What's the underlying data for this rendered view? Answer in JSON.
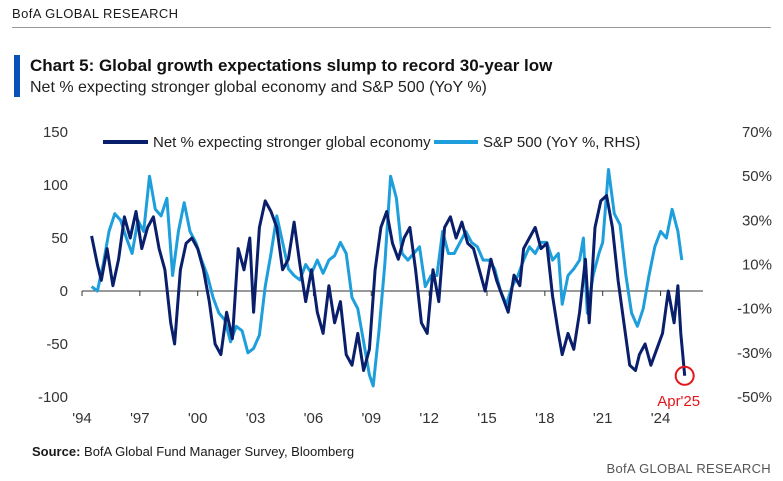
{
  "header": {
    "brand": "BofA GLOBAL RESEARCH"
  },
  "footer": {
    "source_label": "Source:",
    "source_text": "BofA Global Fund Manager Survey, Bloomberg",
    "brand": "BofA GLOBAL RESEARCH"
  },
  "colors": {
    "navy": "#0a1f6b",
    "light": "#1e9fdc",
    "accent": "#0a51b8",
    "annotation": "#e3161b"
  },
  "chart_data": {
    "type": "line",
    "title": "Chart 5: Global growth expectations slump to record 30-year low",
    "subtitle": "Net % expecting stronger global economy and S&P 500 (YoY %)",
    "x_ticks": [
      "'94",
      "'97",
      "'00",
      "'03",
      "'06",
      "'09",
      "'12",
      "'15",
      "'18",
      "'21",
      "'24"
    ],
    "x_tick_years": [
      1994,
      1997,
      2000,
      2003,
      2006,
      2009,
      2012,
      2015,
      2018,
      2021,
      2024
    ],
    "xlim": [
      1994,
      2026.2
    ],
    "left_axis": {
      "ylim": [
        -100,
        150
      ],
      "ticks": [
        150,
        100,
        50,
        0,
        -50,
        -100
      ],
      "labels": [
        "150",
        "100",
        "50",
        "0",
        "-50",
        "-100"
      ]
    },
    "right_axis": {
      "ylim": [
        -50,
        70
      ],
      "ticks": [
        70,
        50,
        30,
        10,
        -10,
        -30,
        -50
      ],
      "labels": [
        "70%",
        "50%",
        "30%",
        "10%",
        "-10%",
        "-30%",
        "-50%"
      ]
    },
    "legend": [
      "Net % expecting stronger global economy",
      "S&P 500 (YoY %, RHS)"
    ],
    "annotation": {
      "label": "Apr'25",
      "x": 2025.25,
      "y": -80
    },
    "series": [
      {
        "name": "Net % expecting stronger global economy",
        "axis": "left",
        "points": [
          [
            1994.5,
            52
          ],
          [
            1994.8,
            25
          ],
          [
            1995.0,
            10
          ],
          [
            1995.3,
            40
          ],
          [
            1995.6,
            5
          ],
          [
            1995.9,
            30
          ],
          [
            1996.2,
            70
          ],
          [
            1996.5,
            50
          ],
          [
            1996.8,
            75
          ],
          [
            1997.1,
            40
          ],
          [
            1997.4,
            60
          ],
          [
            1997.7,
            70
          ],
          [
            1998.0,
            40
          ],
          [
            1998.3,
            20
          ],
          [
            1998.6,
            -30
          ],
          [
            1998.8,
            -50
          ],
          [
            1999.1,
            20
          ],
          [
            1999.4,
            45
          ],
          [
            1999.7,
            50
          ],
          [
            2000.0,
            40
          ],
          [
            2000.3,
            20
          ],
          [
            2000.6,
            -10
          ],
          [
            2000.9,
            -50
          ],
          [
            2001.2,
            -60
          ],
          [
            2001.5,
            -20
          ],
          [
            2001.8,
            -45
          ],
          [
            2002.1,
            40
          ],
          [
            2002.4,
            20
          ],
          [
            2002.7,
            50
          ],
          [
            2002.9,
            -20
          ],
          [
            2003.2,
            60
          ],
          [
            2003.5,
            85
          ],
          [
            2003.8,
            75
          ],
          [
            2004.1,
            60
          ],
          [
            2004.4,
            20
          ],
          [
            2004.7,
            30
          ],
          [
            2005.0,
            65
          ],
          [
            2005.3,
            25
          ],
          [
            2005.6,
            -10
          ],
          [
            2005.9,
            20
          ],
          [
            2006.2,
            -20
          ],
          [
            2006.5,
            -40
          ],
          [
            2006.8,
            5
          ],
          [
            2007.1,
            -30
          ],
          [
            2007.4,
            -10
          ],
          [
            2007.7,
            -60
          ],
          [
            2008.0,
            -70
          ],
          [
            2008.3,
            -40
          ],
          [
            2008.6,
            -75
          ],
          [
            2008.9,
            -55
          ],
          [
            2009.2,
            20
          ],
          [
            2009.5,
            60
          ],
          [
            2009.8,
            75
          ],
          [
            2010.1,
            45
          ],
          [
            2010.4,
            30
          ],
          [
            2010.7,
            50
          ],
          [
            2011.0,
            60
          ],
          [
            2011.3,
            20
          ],
          [
            2011.6,
            -30
          ],
          [
            2011.9,
            -40
          ],
          [
            2012.2,
            20
          ],
          [
            2012.5,
            -10
          ],
          [
            2012.8,
            60
          ],
          [
            2013.1,
            70
          ],
          [
            2013.4,
            50
          ],
          [
            2013.7,
            65
          ],
          [
            2014.0,
            45
          ],
          [
            2014.3,
            40
          ],
          [
            2014.6,
            20
          ],
          [
            2014.9,
            0
          ],
          [
            2015.2,
            30
          ],
          [
            2015.5,
            10
          ],
          [
            2015.8,
            -5
          ],
          [
            2016.1,
            -20
          ],
          [
            2016.4,
            15
          ],
          [
            2016.7,
            5
          ],
          [
            2016.9,
            40
          ],
          [
            2017.2,
            50
          ],
          [
            2017.5,
            60
          ],
          [
            2017.8,
            40
          ],
          [
            2018.1,
            45
          ],
          [
            2018.4,
            -5
          ],
          [
            2018.7,
            -40
          ],
          [
            2018.9,
            -60
          ],
          [
            2019.2,
            -40
          ],
          [
            2019.5,
            -55
          ],
          [
            2019.8,
            -20
          ],
          [
            2020.1,
            30
          ],
          [
            2020.3,
            -30
          ],
          [
            2020.6,
            60
          ],
          [
            2020.9,
            85
          ],
          [
            2021.2,
            90
          ],
          [
            2021.5,
            60
          ],
          [
            2021.8,
            10
          ],
          [
            2022.1,
            -30
          ],
          [
            2022.4,
            -70
          ],
          [
            2022.7,
            -75
          ],
          [
            2022.9,
            -60
          ],
          [
            2023.2,
            -50
          ],
          [
            2023.5,
            -70
          ],
          [
            2023.8,
            -55
          ],
          [
            2024.1,
            -40
          ],
          [
            2024.4,
            0
          ],
          [
            2024.7,
            -30
          ],
          [
            2024.9,
            5
          ],
          [
            2025.05,
            -40
          ],
          [
            2025.25,
            -80
          ]
        ]
      },
      {
        "name": "S&P 500 (YoY %, RHS)",
        "axis": "right",
        "points": [
          [
            1994.5,
            0
          ],
          [
            1994.8,
            -2
          ],
          [
            1995.1,
            10
          ],
          [
            1995.4,
            25
          ],
          [
            1995.7,
            33
          ],
          [
            1996.0,
            30
          ],
          [
            1996.3,
            22
          ],
          [
            1996.6,
            15
          ],
          [
            1996.9,
            30
          ],
          [
            1997.2,
            25
          ],
          [
            1997.5,
            50
          ],
          [
            1997.8,
            35
          ],
          [
            1998.1,
            32
          ],
          [
            1998.4,
            40
          ],
          [
            1998.7,
            5
          ],
          [
            1999.0,
            25
          ],
          [
            1999.3,
            38
          ],
          [
            1999.6,
            25
          ],
          [
            1999.9,
            20
          ],
          [
            2000.2,
            12
          ],
          [
            2000.5,
            5
          ],
          [
            2000.8,
            -5
          ],
          [
            2001.1,
            -12
          ],
          [
            2001.4,
            -15
          ],
          [
            2001.7,
            -25
          ],
          [
            2002.0,
            -18
          ],
          [
            2002.3,
            -20
          ],
          [
            2002.6,
            -30
          ],
          [
            2002.9,
            -28
          ],
          [
            2003.2,
            -22
          ],
          [
            2003.5,
            0
          ],
          [
            2003.8,
            15
          ],
          [
            2004.1,
            32
          ],
          [
            2004.4,
            20
          ],
          [
            2004.7,
            8
          ],
          [
            2005.0,
            5
          ],
          [
            2005.3,
            3
          ],
          [
            2005.6,
            10
          ],
          [
            2005.9,
            6
          ],
          [
            2006.2,
            12
          ],
          [
            2006.5,
            6
          ],
          [
            2006.8,
            12
          ],
          [
            2007.1,
            14
          ],
          [
            2007.4,
            20
          ],
          [
            2007.7,
            15
          ],
          [
            2008.0,
            -5
          ],
          [
            2008.3,
            -10
          ],
          [
            2008.6,
            -25
          ],
          [
            2008.9,
            -40
          ],
          [
            2009.1,
            -45
          ],
          [
            2009.4,
            -20
          ],
          [
            2009.7,
            10
          ],
          [
            2010.0,
            50
          ],
          [
            2010.3,
            40
          ],
          [
            2010.6,
            15
          ],
          [
            2010.9,
            12
          ],
          [
            2011.2,
            15
          ],
          [
            2011.5,
            18
          ],
          [
            2011.8,
            0
          ],
          [
            2012.1,
            5
          ],
          [
            2012.4,
            5
          ],
          [
            2012.7,
            25
          ],
          [
            2013.0,
            15
          ],
          [
            2013.3,
            15
          ],
          [
            2013.6,
            20
          ],
          [
            2013.9,
            25
          ],
          [
            2014.2,
            20
          ],
          [
            2014.5,
            18
          ],
          [
            2014.8,
            12
          ],
          [
            2015.1,
            12
          ],
          [
            2015.4,
            8
          ],
          [
            2015.7,
            -2
          ],
          [
            2016.0,
            -8
          ],
          [
            2016.3,
            0
          ],
          [
            2016.6,
            5
          ],
          [
            2016.9,
            12
          ],
          [
            2017.2,
            18
          ],
          [
            2017.5,
            15
          ],
          [
            2017.8,
            20
          ],
          [
            2018.1,
            20
          ],
          [
            2018.4,
            12
          ],
          [
            2018.7,
            15
          ],
          [
            2018.9,
            -8
          ],
          [
            2019.2,
            5
          ],
          [
            2019.5,
            8
          ],
          [
            2019.8,
            12
          ],
          [
            2020.0,
            22
          ],
          [
            2020.2,
            -12
          ],
          [
            2020.5,
            5
          ],
          [
            2020.8,
            15
          ],
          [
            2021.0,
            20
          ],
          [
            2021.3,
            53
          ],
          [
            2021.6,
            33
          ],
          [
            2021.9,
            28
          ],
          [
            2022.2,
            5
          ],
          [
            2022.5,
            -12
          ],
          [
            2022.8,
            -18
          ],
          [
            2023.1,
            -10
          ],
          [
            2023.4,
            5
          ],
          [
            2023.7,
            18
          ],
          [
            2024.0,
            25
          ],
          [
            2024.3,
            22
          ],
          [
            2024.6,
            35
          ],
          [
            2024.9,
            25
          ],
          [
            2025.1,
            12
          ]
        ]
      }
    ]
  }
}
